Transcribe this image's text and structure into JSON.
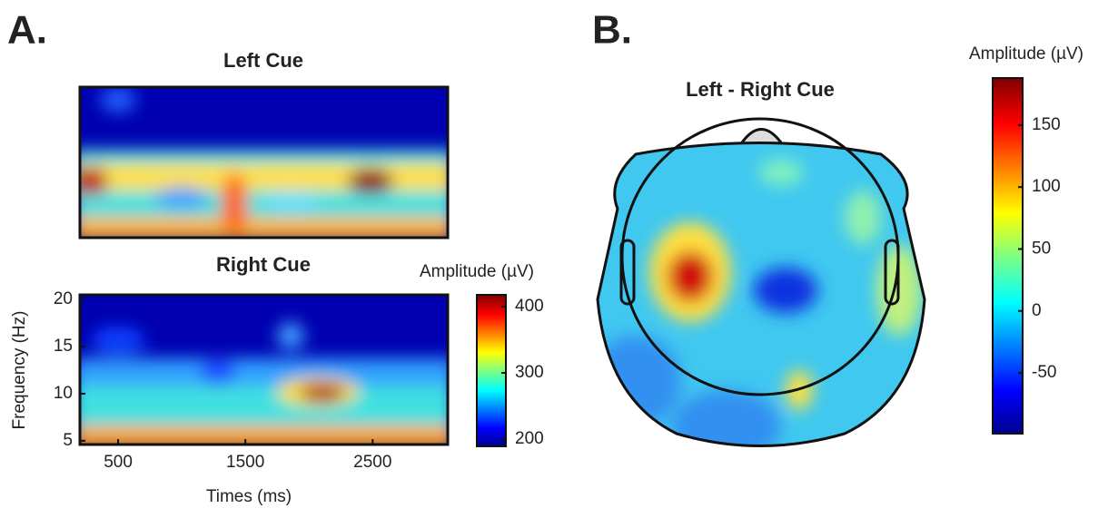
{
  "panel_a": {
    "label": "A.",
    "charts": [
      {
        "title": "Left Cue"
      },
      {
        "title": "Right Cue",
        "xlabel": "Times (ms)",
        "ylabel": "Frequency (Hz)",
        "xlim": [
          200,
          3090
        ],
        "xticks": [
          500,
          1500,
          2500
        ],
        "ylim": [
          4.6,
          20.5
        ],
        "yticks": [
          5,
          10,
          15,
          20
        ]
      }
    ],
    "colorbar": {
      "label": "Amplitude (µV)",
      "lim": [
        189,
        418
      ],
      "ticks": [
        200,
        300,
        400
      ]
    }
  },
  "panel_b": {
    "label": "B.",
    "title": "Left - Right Cue",
    "colorbar": {
      "label": "Amplitude (µV)",
      "lim": [
        -99,
        188
      ],
      "ticks": [
        -50,
        0,
        50,
        100,
        150
      ]
    }
  }
}
